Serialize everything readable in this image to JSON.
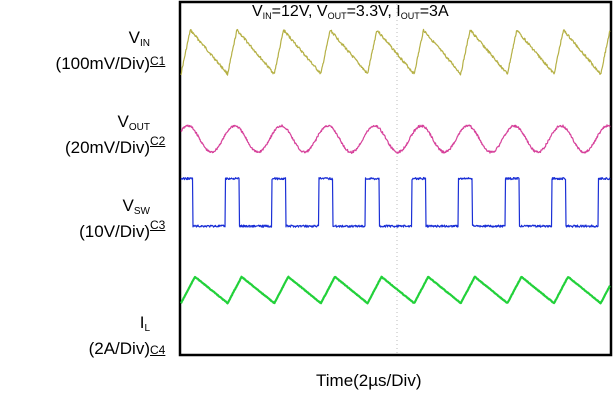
{
  "chart_data": {
    "type": "line",
    "title": {
      "parts": [
        {
          "t": "V"
        },
        {
          "sub": "IN"
        },
        {
          "t": "=12V, V"
        },
        {
          "sub": "OUT"
        },
        {
          "t": "=3.3V, I"
        },
        {
          "sub": "OUT"
        },
        {
          "t": "=3A"
        }
      ]
    },
    "xlabel": "Time(2µs/Div)",
    "grid": false,
    "series": [
      {
        "name_parts": [
          {
            "t": "V"
          },
          {
            "sub": "IN"
          }
        ],
        "scale": "(100mV/Div)",
        "channel": "C1",
        "color": "#b5b045",
        "waveform": "sawtooth",
        "periods_visible": 9.2,
        "peak_to_peak_divisions": 1.0
      },
      {
        "name_parts": [
          {
            "t": "V"
          },
          {
            "sub": "OUT"
          }
        ],
        "scale": "(20mV/Div)",
        "channel": "C2",
        "color": "#d6409a",
        "waveform": "sine",
        "periods_visible": 9.2,
        "peak_to_peak_divisions": 0.6
      },
      {
        "name_parts": [
          {
            "t": "V"
          },
          {
            "sub": "SW"
          }
        ],
        "scale": "(10V/Div)",
        "channel": "C3",
        "color": "#1a2fd6",
        "waveform": "pulse",
        "periods_visible": 9.2,
        "duty_cycle": 0.3,
        "peak_to_peak_divisions": 1.2
      },
      {
        "name_parts": [
          {
            "t": "I"
          },
          {
            "sub": "L"
          }
        ],
        "scale": "(2A/Div)",
        "channel": "C4",
        "color": "#22d13a",
        "waveform": "triangle",
        "periods_visible": 9.2,
        "duty_cycle": 0.3,
        "peak_to_peak_divisions": 0.6
      }
    ]
  }
}
